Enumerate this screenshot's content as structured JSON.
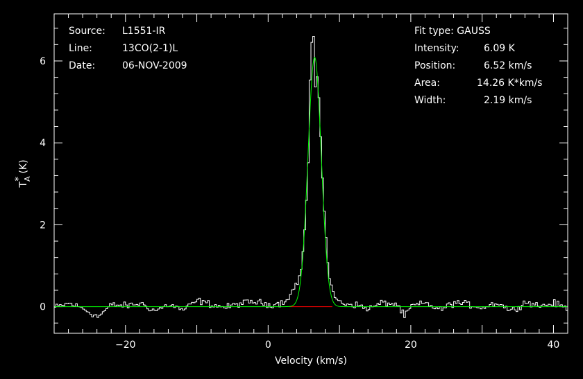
{
  "header_left": {
    "source_label": "Source:",
    "source_value": "L1551-IR",
    "line_label": "Line:",
    "line_value": "13CO(2-1)L",
    "date_label": "Date:",
    "date_value": "06-NOV-2009"
  },
  "header_right": {
    "fit_type": "Fit type: GAUSS",
    "intensity_label": "Intensity:",
    "intensity_value": "6.09 K",
    "position_label": "Position:",
    "position_value": "6.52 km/s",
    "area_label": "Area:",
    "area_value": "14.26 K*km/s",
    "width_label": "Width:",
    "width_value": "2.19 km/s"
  },
  "colors": {
    "background": "#000000",
    "spectrum": "#ffffff",
    "fit": "#00ff00",
    "baseline": "#ff0000",
    "axes": "#ffffff"
  },
  "chart_data": {
    "type": "line",
    "xlabel": "Velocity (km/s)",
    "ylabel": "T_A* (K)",
    "xlim": [
      -30,
      42
    ],
    "ylim": [
      -0.65,
      7.15
    ],
    "xticks": [
      -20,
      0,
      20,
      40
    ],
    "xtick_labels": [
      "−20",
      "0",
      "20",
      "40"
    ],
    "yticks": [
      0,
      2,
      4,
      6
    ],
    "ytick_labels": [
      "0",
      "2",
      "4",
      "6"
    ],
    "spectrum": {
      "channel_width_kms": 0.25,
      "peak_max": 6.8,
      "noise_rms": 0.1,
      "points": [
        [
          -30,
          -0.02
        ],
        [
          -28,
          0.08
        ],
        [
          -26,
          -0.05
        ],
        [
          -24,
          -0.25
        ],
        [
          -22,
          0.05
        ],
        [
          -20,
          0.02
        ],
        [
          -18,
          0.08
        ],
        [
          -16,
          -0.1
        ],
        [
          -14,
          0.05
        ],
        [
          -12,
          -0.08
        ],
        [
          -10,
          0.15
        ],
        [
          -8,
          0.05
        ],
        [
          -6,
          -0.02
        ],
        [
          -4,
          0.08
        ],
        [
          -2,
          0.12
        ],
        [
          0,
          0.05
        ],
        [
          2,
          0.1
        ],
        [
          3,
          0.3
        ],
        [
          4,
          0.6
        ],
        [
          4.5,
          0.9
        ],
        [
          5,
          1.8
        ],
        [
          5.5,
          3.5
        ],
        [
          5.8,
          5.9
        ],
        [
          6.0,
          6.4
        ],
        [
          6.2,
          6.8
        ],
        [
          6.4,
          5.8
        ],
        [
          6.6,
          4.5
        ],
        [
          6.8,
          6.0
        ],
        [
          7,
          5.2
        ],
        [
          7.5,
          3.2
        ],
        [
          8,
          1.6
        ],
        [
          8.5,
          0.7
        ],
        [
          9,
          0.3
        ],
        [
          10,
          0.1
        ],
        [
          12,
          0.05
        ],
        [
          14,
          -0.05
        ],
        [
          16,
          0.1
        ],
        [
          18,
          0.05
        ],
        [
          19,
          -0.25
        ],
        [
          20,
          0.02
        ],
        [
          22,
          0.08
        ],
        [
          24,
          -0.08
        ],
        [
          26,
          0.1
        ],
        [
          28,
          0.05
        ],
        [
          30,
          -0.02
        ],
        [
          32,
          0.1
        ],
        [
          34,
          -0.1
        ],
        [
          36,
          0.12
        ],
        [
          38,
          0.02
        ],
        [
          40,
          0.08
        ],
        [
          42,
          -0.05
        ]
      ]
    },
    "fit": {
      "model": "gauss",
      "amplitude": 6.09,
      "center": 6.52,
      "fwhm": 2.19
    },
    "baseline": {
      "value": 0,
      "range": [
        3,
        9
      ]
    }
  }
}
